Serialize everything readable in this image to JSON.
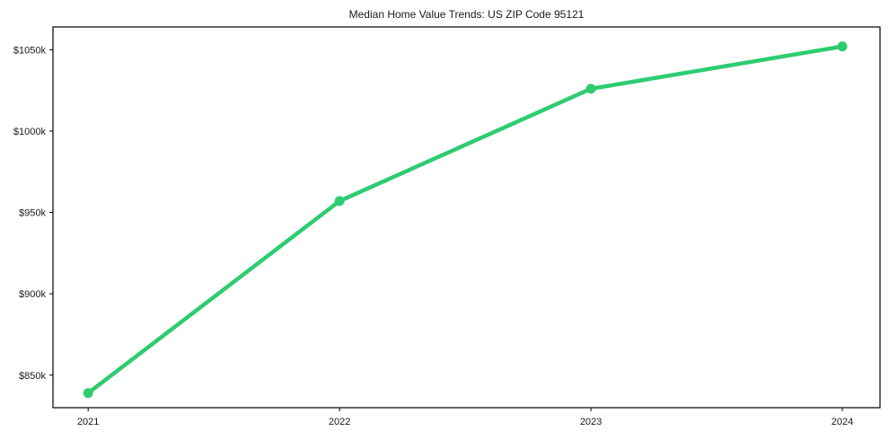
{
  "chart_data": {
    "type": "line",
    "title": "Median Home Value Trends: US ZIP Code 95121",
    "x": [
      2021,
      2022,
      2023,
      2024
    ],
    "x_tick_labels": [
      "2021",
      "2022",
      "2023",
      "2024"
    ],
    "series": [
      {
        "name": "Median Home Value",
        "values": [
          839,
          957,
          1026,
          1052
        ]
      }
    ],
    "values_unit": "thousand USD",
    "y_ticks": [
      850,
      900,
      950,
      1000,
      1050
    ],
    "y_tick_labels": [
      "$850k",
      "$900k",
      "$950k",
      "$1000k",
      "$1050k"
    ],
    "xlabel": "",
    "ylabel": "",
    "xlim": [
      2020.86,
      2024.15
    ],
    "ylim": [
      830,
      1064
    ],
    "grid": false,
    "legend": "none",
    "line_color": "#2ecc71",
    "axis_color": "#000000",
    "text_color": "#1a1a1a",
    "marker": "circle",
    "line_width": 4.5,
    "marker_radius": 5.5
  }
}
